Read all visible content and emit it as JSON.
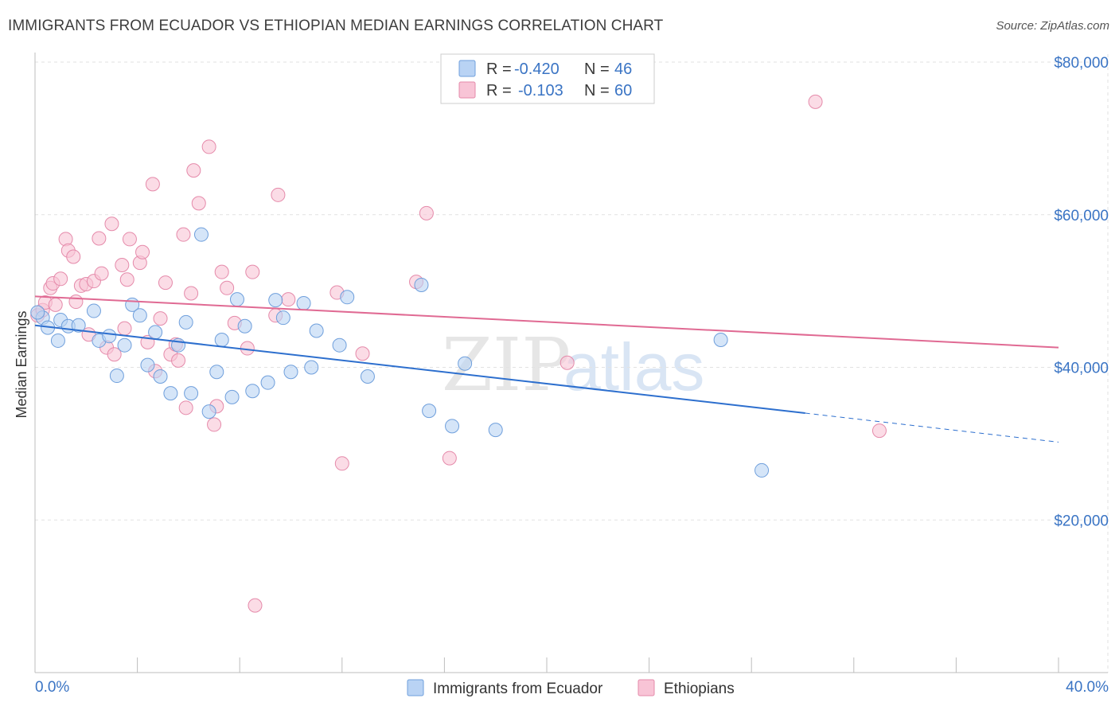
{
  "title": "IMMIGRANTS FROM ECUADOR VS ETHIOPIAN MEDIAN EARNINGS CORRELATION CHART",
  "source": "Source: ZipAtlas.com",
  "watermark": {
    "zip": "ZIP",
    "atlas": "atlas"
  },
  "colors": {
    "ecuador_fill": "#b9d3f4",
    "ecuador_stroke": "#6f9fdc",
    "ecuador_line": "#2d6fce",
    "ethiopian_fill": "#f8c4d6",
    "ethiopian_stroke": "#e58aaa",
    "ethiopian_line": "#e06a93",
    "axis_text": "#3a74c4"
  },
  "legend": {
    "r_label": "R =",
    "n_label": "N =",
    "ecuador": {
      "r": "-0.420",
      "n": "46"
    },
    "ethiopian": {
      "r": "-0.103",
      "n": "60"
    }
  },
  "chart_data": {
    "type": "scatter",
    "title": "IMMIGRANTS FROM ECUADOR VS ETHIOPIAN MEDIAN EARNINGS CORRELATION CHART",
    "xlabel": "",
    "ylabel": "Median Earnings",
    "xlim": [
      0,
      40
    ],
    "ylim": [
      0,
      80000
    ],
    "x_tick_labels": [
      "0.0%",
      "40.0%"
    ],
    "y_ticks": [
      20000,
      40000,
      60000,
      80000
    ],
    "y_tick_labels": [
      "$20,000",
      "$40,000",
      "$60,000",
      "$80,000"
    ],
    "grid": true,
    "legend_position": "top-center",
    "series": [
      {
        "name": "Immigrants from Ecuador",
        "r": -0.42,
        "n": 46,
        "trend": {
          "x0": 0,
          "y0": 45500,
          "x1": 30.1,
          "y1": 34000,
          "dash_to_x": 40,
          "dash_to_y": 30200
        },
        "points": [
          [
            0.3,
            46500
          ],
          [
            0.5,
            45200
          ],
          [
            0.9,
            43500
          ],
          [
            1.0,
            46200
          ],
          [
            1.3,
            45400
          ],
          [
            1.7,
            45500
          ],
          [
            2.3,
            47400
          ],
          [
            2.5,
            43500
          ],
          [
            2.9,
            44100
          ],
          [
            3.2,
            38900
          ],
          [
            3.5,
            42900
          ],
          [
            3.8,
            48200
          ],
          [
            4.1,
            46800
          ],
          [
            4.4,
            40300
          ],
          [
            4.7,
            44600
          ],
          [
            4.9,
            38800
          ],
          [
            5.3,
            36600
          ],
          [
            5.6,
            42900
          ],
          [
            5.9,
            45900
          ],
          [
            6.1,
            36600
          ],
          [
            6.5,
            57400
          ],
          [
            6.8,
            34200
          ],
          [
            7.1,
            39400
          ],
          [
            7.3,
            43600
          ],
          [
            7.7,
            36100
          ],
          [
            7.9,
            48900
          ],
          [
            8.2,
            45400
          ],
          [
            8.5,
            36900
          ],
          [
            9.1,
            38000
          ],
          [
            9.4,
            48800
          ],
          [
            9.7,
            46500
          ],
          [
            10.0,
            39400
          ],
          [
            10.5,
            48400
          ],
          [
            10.8,
            40000
          ],
          [
            11.0,
            44800
          ],
          [
            11.9,
            42900
          ],
          [
            12.2,
            49200
          ],
          [
            13.0,
            38800
          ],
          [
            15.1,
            50800
          ],
          [
            15.4,
            34300
          ],
          [
            16.3,
            32300
          ],
          [
            16.8,
            40500
          ],
          [
            18.0,
            31800
          ],
          [
            26.8,
            43600
          ],
          [
            28.4,
            26500
          ],
          [
            0.1,
            47200
          ]
        ]
      },
      {
        "name": "Ethiopians",
        "r": -0.103,
        "n": 60,
        "trend": {
          "x0": 0,
          "y0": 49300,
          "x1": 40,
          "y1": 42600
        },
        "points": [
          [
            0.1,
            46800
          ],
          [
            0.3,
            47500
          ],
          [
            0.4,
            48500
          ],
          [
            0.6,
            50400
          ],
          [
            0.7,
            51000
          ],
          [
            0.8,
            48200
          ],
          [
            1.0,
            51600
          ],
          [
            1.2,
            56800
          ],
          [
            1.3,
            55300
          ],
          [
            1.5,
            54500
          ],
          [
            1.6,
            48600
          ],
          [
            1.8,
            50700
          ],
          [
            2.0,
            50900
          ],
          [
            2.1,
            44300
          ],
          [
            2.3,
            51300
          ],
          [
            2.5,
            56900
          ],
          [
            2.6,
            52300
          ],
          [
            2.8,
            42600
          ],
          [
            3.0,
            58800
          ],
          [
            3.1,
            41700
          ],
          [
            3.4,
            53400
          ],
          [
            3.5,
            45100
          ],
          [
            3.6,
            51500
          ],
          [
            3.7,
            56800
          ],
          [
            4.1,
            53700
          ],
          [
            4.2,
            55100
          ],
          [
            4.4,
            43300
          ],
          [
            4.7,
            39500
          ],
          [
            4.9,
            46400
          ],
          [
            5.1,
            51100
          ],
          [
            5.3,
            41700
          ],
          [
            5.5,
            43000
          ],
          [
            5.6,
            40900
          ],
          [
            5.8,
            57400
          ],
          [
            5.9,
            34700
          ],
          [
            6.1,
            49700
          ],
          [
            6.2,
            65800
          ],
          [
            6.4,
            61500
          ],
          [
            6.8,
            68900
          ],
          [
            7.0,
            32500
          ],
          [
            7.1,
            34900
          ],
          [
            7.3,
            52500
          ],
          [
            7.5,
            50400
          ],
          [
            7.8,
            45800
          ],
          [
            8.3,
            42500
          ],
          [
            8.5,
            52500
          ],
          [
            8.6,
            8800
          ],
          [
            9.4,
            46800
          ],
          [
            9.5,
            62600
          ],
          [
            9.9,
            48900
          ],
          [
            11.8,
            49800
          ],
          [
            12.0,
            27400
          ],
          [
            12.8,
            41800
          ],
          [
            14.9,
            51200
          ],
          [
            15.3,
            60200
          ],
          [
            16.2,
            28100
          ],
          [
            20.8,
            40600
          ],
          [
            30.5,
            74800
          ],
          [
            33.0,
            31700
          ],
          [
            4.6,
            64000
          ]
        ]
      }
    ]
  },
  "bottom_legend": {
    "ecuador_label": "Immigrants from Ecuador",
    "ethiopian_label": "Ethiopians"
  }
}
